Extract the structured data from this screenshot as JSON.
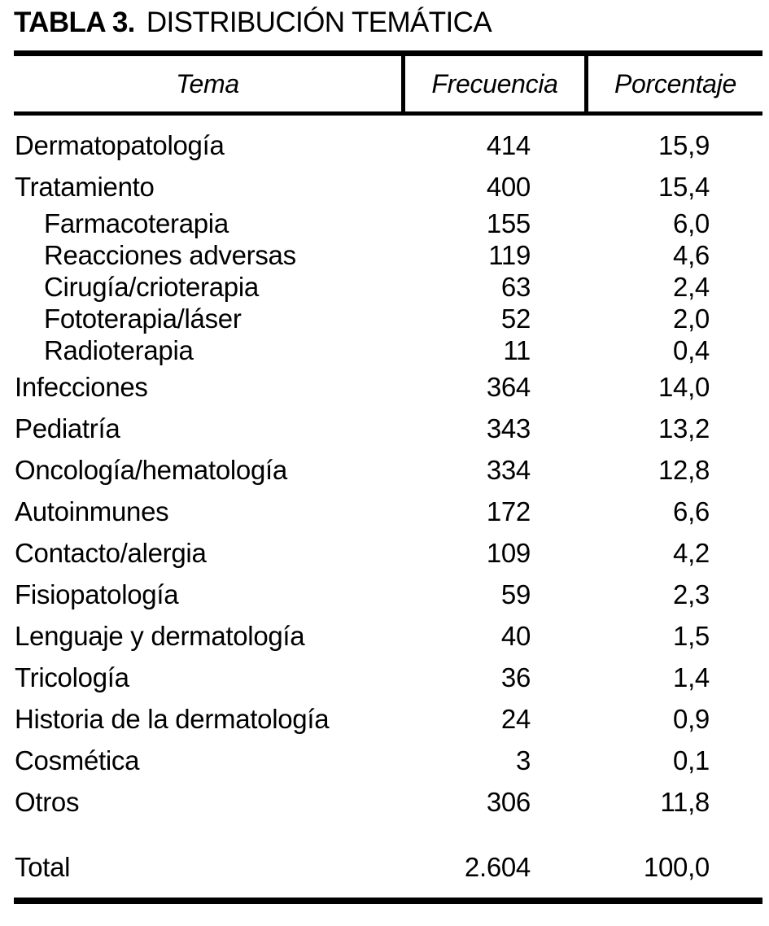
{
  "title": {
    "label": "TABLA 3.",
    "text": "DISTRIBUCIÓN TEMÁTICA"
  },
  "table": {
    "columns": {
      "tema": "Tema",
      "frecuencia": "Frecuencia",
      "porcentaje": "Porcentaje"
    },
    "rows": [
      {
        "tema": "Dermatopatología",
        "frecuencia": "414",
        "porcentaje": "15,9",
        "level": "main"
      },
      {
        "tema": "Tratamiento",
        "frecuencia": "400",
        "porcentaje": "15,4",
        "level": "main"
      },
      {
        "tema": "Farmacoterapia",
        "frecuencia": "155",
        "porcentaje": "6,0",
        "level": "sub"
      },
      {
        "tema": "Reacciones adversas",
        "frecuencia": "119",
        "porcentaje": "4,6",
        "level": "sub"
      },
      {
        "tema": "Cirugía/crioterapia",
        "frecuencia": "63",
        "porcentaje": "2,4",
        "level": "sub"
      },
      {
        "tema": "Fototerapia/láser",
        "frecuencia": "52",
        "porcentaje": "2,0",
        "level": "sub"
      },
      {
        "tema": "Radioterapia",
        "frecuencia": "11",
        "porcentaje": "0,4",
        "level": "sub"
      },
      {
        "tema": "Infecciones",
        "frecuencia": "364",
        "porcentaje": "14,0",
        "level": "main"
      },
      {
        "tema": "Pediatría",
        "frecuencia": "343",
        "porcentaje": "13,2",
        "level": "main"
      },
      {
        "tema": "Oncología/hematología",
        "frecuencia": "334",
        "porcentaje": "12,8",
        "level": "main"
      },
      {
        "tema": "Autoinmunes",
        "frecuencia": "172",
        "porcentaje": "6,6",
        "level": "main"
      },
      {
        "tema": "Contacto/alergia",
        "frecuencia": "109",
        "porcentaje": "4,2",
        "level": "main"
      },
      {
        "tema": "Fisiopatología",
        "frecuencia": "59",
        "porcentaje": "2,3",
        "level": "main"
      },
      {
        "tema": "Lenguaje y dermatología",
        "frecuencia": "40",
        "porcentaje": "1,5",
        "level": "main"
      },
      {
        "tema": "Tricología",
        "frecuencia": "36",
        "porcentaje": "1,4",
        "level": "main"
      },
      {
        "tema": "Historia de la dermatología",
        "frecuencia": "24",
        "porcentaje": "0,9",
        "level": "main"
      },
      {
        "tema": "Cosmética",
        "frecuencia": "3",
        "porcentaje": "0,1",
        "level": "main"
      },
      {
        "tema": "Otros",
        "frecuencia": "306",
        "porcentaje": "11,8",
        "level": "main"
      }
    ],
    "total": {
      "tema": "Total",
      "frecuencia": "2.604",
      "porcentaje": "100,0"
    }
  },
  "colors": {
    "text": "#000000",
    "background": "#ffffff",
    "rule": "#000000"
  }
}
